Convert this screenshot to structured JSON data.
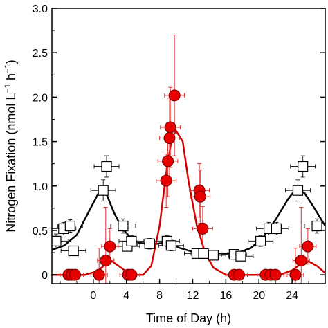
{
  "chart_data": {
    "type": "scatter",
    "title": "",
    "xlabel": "Time of Day (h)",
    "ylabel_main": "Nitrogen Fixation (nmol L",
    "ylabel_sup1": "−1",
    "ylabel_mid": " h",
    "ylabel_sup2": "−1",
    "ylabel_end": ")",
    "xlim": [
      -5,
      28
    ],
    "ylim": [
      -0.1,
      3.0
    ],
    "xticks": [
      0,
      4,
      8,
      12,
      16,
      20,
      24
    ],
    "xtick_labels": [
      "0",
      "4",
      "8",
      "12",
      "16",
      "20",
      "24"
    ],
    "yticks": [
      0,
      0.5,
      1.0,
      1.5,
      2.0,
      2.5,
      3.0
    ],
    "ytick_labels": [
      "0",
      "0.5",
      "1.0",
      "1.5",
      "2.0",
      "2.5",
      "3.0"
    ],
    "grid": false,
    "legend": "none",
    "series": [
      {
        "marker": "open-square",
        "color": "#000000",
        "points": [
          {
            "x": -4.5,
            "y": 0.38,
            "xerr": 1.5,
            "yerr": 0.08
          },
          {
            "x": -3.6,
            "y": 0.52,
            "xerr": 1.5,
            "yerr": 0.07
          },
          {
            "x": -2.8,
            "y": 0.55,
            "xerr": 1.5,
            "yerr": 0.07
          },
          {
            "x": -2.4,
            "y": 0.27,
            "xerr": 1.5,
            "yerr": 0.05
          },
          {
            "x": 1.2,
            "y": 0.95,
            "xerr": 1.5,
            "yerr": 0.12
          },
          {
            "x": 1.6,
            "y": 1.22,
            "xerr": 1.5,
            "yerr": 0.12
          },
          {
            "x": 3.6,
            "y": 0.55,
            "xerr": 1.5,
            "yerr": 0.08
          },
          {
            "x": 4.1,
            "y": 0.32,
            "xerr": 1.5,
            "yerr": 0.05
          },
          {
            "x": 4.6,
            "y": 0.38,
            "xerr": 1.5,
            "yerr": 0.06
          },
          {
            "x": 6.8,
            "y": 0.35,
            "xerr": 1.5,
            "yerr": 0.06
          },
          {
            "x": 8.9,
            "y": 0.38,
            "xerr": 1.5,
            "yerr": 0.06
          },
          {
            "x": 9.4,
            "y": 0.33,
            "xerr": 1.5,
            "yerr": 0.06
          },
          {
            "x": 12.5,
            "y": 0.24,
            "xerr": 1.5,
            "yerr": 0.05
          },
          {
            "x": 13.3,
            "y": 0.24,
            "xerr": 1.5,
            "yerr": 0.05
          },
          {
            "x": 14.5,
            "y": 0.22,
            "xerr": 1.5,
            "yerr": 0.05
          },
          {
            "x": 17.0,
            "y": 0.23,
            "xerr": 1.5,
            "yerr": 0.05
          },
          {
            "x": 17.8,
            "y": 0.21,
            "xerr": 1.5,
            "yerr": 0.05
          },
          {
            "x": 20.2,
            "y": 0.38,
            "xerr": 1.5,
            "yerr": 0.06
          },
          {
            "x": 21.2,
            "y": 0.52,
            "xerr": 1.5,
            "yerr": 0.07
          },
          {
            "x": 22.1,
            "y": 0.52,
            "xerr": 1.5,
            "yerr": 0.07
          },
          {
            "x": 24.7,
            "y": 0.95,
            "xerr": 1.5,
            "yerr": 0.12
          },
          {
            "x": 25.3,
            "y": 1.22,
            "xerr": 1.5,
            "yerr": 0.12
          },
          {
            "x": 27.0,
            "y": 0.55,
            "xerr": 1.5,
            "yerr": 0.08
          }
        ],
        "fit": [
          [
            -5,
            0.28
          ],
          [
            -3.5,
            0.33
          ],
          [
            -2,
            0.45
          ],
          [
            -0.5,
            0.72
          ],
          [
            0.8,
            0.95
          ],
          [
            1.5,
            0.93
          ],
          [
            2.5,
            0.7
          ],
          [
            3.5,
            0.52
          ],
          [
            4.5,
            0.42
          ],
          [
            5.5,
            0.36
          ],
          [
            7,
            0.34
          ],
          [
            8.5,
            0.36
          ],
          [
            9.5,
            0.34
          ],
          [
            10.5,
            0.3
          ],
          [
            12,
            0.26
          ],
          [
            14,
            0.24
          ],
          [
            16,
            0.24
          ],
          [
            17.5,
            0.25
          ],
          [
            19,
            0.3
          ],
          [
            20.5,
            0.42
          ],
          [
            22,
            0.62
          ],
          [
            23.5,
            0.85
          ],
          [
            24.5,
            0.97
          ],
          [
            25.5,
            0.92
          ],
          [
            26.5,
            0.78
          ],
          [
            28,
            0.55
          ]
        ]
      },
      {
        "marker": "filled-circle",
        "color": "#e00000",
        "points": [
          {
            "x": -3.0,
            "y": 0.0,
            "xerr": 1.0,
            "yerr": 0.05
          },
          {
            "x": -2.6,
            "y": 0.0,
            "xerr": 1.0,
            "yerr": 0.05
          },
          {
            "x": -2.2,
            "y": 0.0,
            "xerr": 1.0,
            "yerr": 0.05
          },
          {
            "x": 0.7,
            "y": 0.0,
            "xerr": 1.0,
            "yerr": 0.3
          },
          {
            "x": 1.5,
            "y": 0.16,
            "xerr": 1.0,
            "yerr": 0.6
          },
          {
            "x": 2.0,
            "y": 0.32,
            "xerr": 1.0,
            "yerr": 0.2
          },
          {
            "x": 4.2,
            "y": 0.0,
            "xerr": 1.0,
            "yerr": 0.05
          },
          {
            "x": 4.6,
            "y": 0.0,
            "xerr": 1.0,
            "yerr": 0.05
          },
          {
            "x": 8.8,
            "y": 1.06,
            "xerr": 1.2,
            "yerr": 0.3
          },
          {
            "x": 9.0,
            "y": 1.28,
            "xerr": 1.2,
            "yerr": 0.4
          },
          {
            "x": 9.2,
            "y": 1.54,
            "xerr": 1.2,
            "yerr": 0.45
          },
          {
            "x": 9.3,
            "y": 1.66,
            "xerr": 1.2,
            "yerr": 0.45
          },
          {
            "x": 9.8,
            "y": 2.02,
            "xerr": 1.2,
            "yerr": 0.68
          },
          {
            "x": 12.8,
            "y": 0.95,
            "xerr": 1.2,
            "yerr": 0.3
          },
          {
            "x": 12.9,
            "y": 0.88,
            "xerr": 1.2,
            "yerr": 0.3
          },
          {
            "x": 13.2,
            "y": 0.52,
            "xerr": 1.2,
            "yerr": 0.25
          },
          {
            "x": 17.0,
            "y": 0.0,
            "xerr": 1.0,
            "yerr": 0.05
          },
          {
            "x": 17.6,
            "y": 0.0,
            "xerr": 1.0,
            "yerr": 0.05
          },
          {
            "x": 20.8,
            "y": 0.0,
            "xerr": 1.0,
            "yerr": 0.05
          },
          {
            "x": 21.4,
            "y": 0.0,
            "xerr": 1.0,
            "yerr": 0.05
          },
          {
            "x": 22.0,
            "y": 0.0,
            "xerr": 1.0,
            "yerr": 0.05
          },
          {
            "x": 24.4,
            "y": 0.0,
            "xerr": 1.0,
            "yerr": 0.3
          },
          {
            "x": 25.1,
            "y": 0.16,
            "xerr": 1.0,
            "yerr": 0.6
          },
          {
            "x": 25.9,
            "y": 0.32,
            "xerr": 1.0,
            "yerr": 0.2
          }
        ],
        "fit": [
          [
            -5,
            0.0
          ],
          [
            -1,
            0.0
          ],
          [
            0.5,
            0.04
          ],
          [
            1.5,
            0.12
          ],
          [
            2.3,
            0.15
          ],
          [
            3.2,
            0.09
          ],
          [
            4.5,
            0.0
          ],
          [
            6,
            0.0
          ],
          [
            7,
            0.1
          ],
          [
            8,
            0.55
          ],
          [
            8.8,
            1.15
          ],
          [
            9.5,
            1.55
          ],
          [
            10,
            1.62
          ],
          [
            10.8,
            1.5
          ],
          [
            11.5,
            1.05
          ],
          [
            12.5,
            0.55
          ],
          [
            13.5,
            0.25
          ],
          [
            14.5,
            0.08
          ],
          [
            16,
            0.0
          ],
          [
            22.5,
            0.0
          ],
          [
            24,
            0.05
          ],
          [
            25,
            0.12
          ],
          [
            26,
            0.15
          ],
          [
            27,
            0.1
          ],
          [
            28,
            0.02
          ]
        ]
      }
    ]
  }
}
